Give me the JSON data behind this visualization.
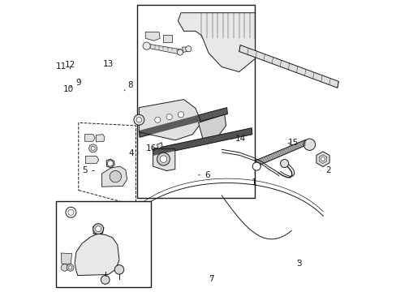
{
  "background_color": "#ffffff",
  "line_color": "#1a1a1a",
  "fig_width": 4.89,
  "fig_height": 3.6,
  "dpi": 100,
  "labels": {
    "1": [
      0.695,
      0.415,
      0.69,
      0.375
    ],
    "2": [
      0.92,
      0.415,
      0.945,
      0.415
    ],
    "3": [
      0.84,
      0.115,
      0.845,
      0.095
    ],
    "4": [
      0.295,
      0.475,
      0.27,
      0.475
    ],
    "5": [
      0.15,
      0.415,
      0.11,
      0.415
    ],
    "6": [
      0.5,
      0.4,
      0.53,
      0.4
    ],
    "7": [
      0.54,
      0.062,
      0.545,
      0.042
    ],
    "8": [
      0.245,
      0.69,
      0.265,
      0.71
    ],
    "9": [
      0.093,
      0.73,
      0.088,
      0.718
    ],
    "10": [
      0.063,
      0.705,
      0.053,
      0.694
    ],
    "11": [
      0.04,
      0.76,
      0.028,
      0.772
    ],
    "12": [
      0.06,
      0.765,
      0.058,
      0.778
    ],
    "13": [
      0.175,
      0.77,
      0.19,
      0.782
    ],
    "14": [
      0.615,
      0.525,
      0.645,
      0.525
    ],
    "15": [
      0.8,
      0.51,
      0.825,
      0.51
    ],
    "16": [
      0.35,
      0.505,
      0.338,
      0.492
    ]
  }
}
